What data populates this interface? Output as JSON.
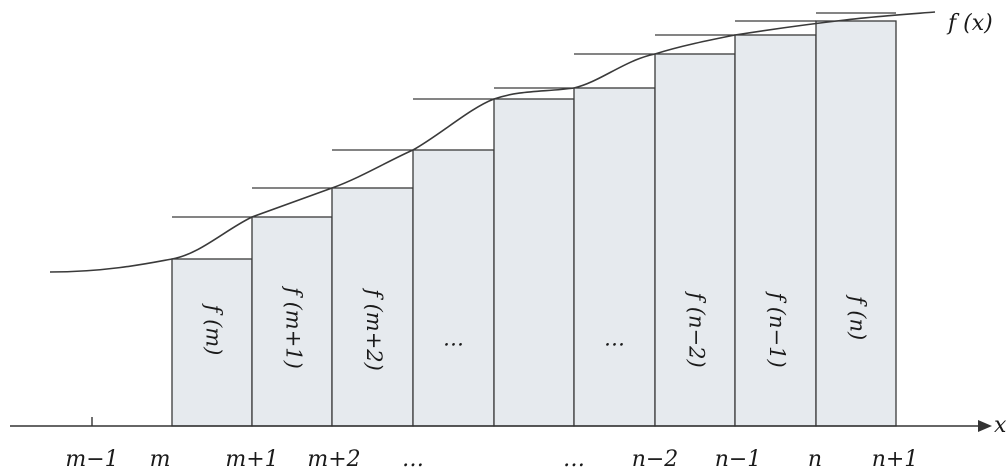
{
  "diagram": {
    "curve_label": "f (x)",
    "axis_label": "x",
    "x_labels": [
      "m−1",
      "m",
      "m+1",
      "m+2",
      "…",
      "…",
      "n−2",
      "n−1",
      "n",
      "n+1"
    ],
    "bar_labels": [
      "f (m)",
      "f (m+1)",
      "f (m+2)",
      "…",
      "…",
      "f (n−2)",
      "f (n−1)",
      "f (n)"
    ]
  },
  "colors": {
    "bar_fill": "#e6eaee",
    "line": "#3a3a3a"
  }
}
